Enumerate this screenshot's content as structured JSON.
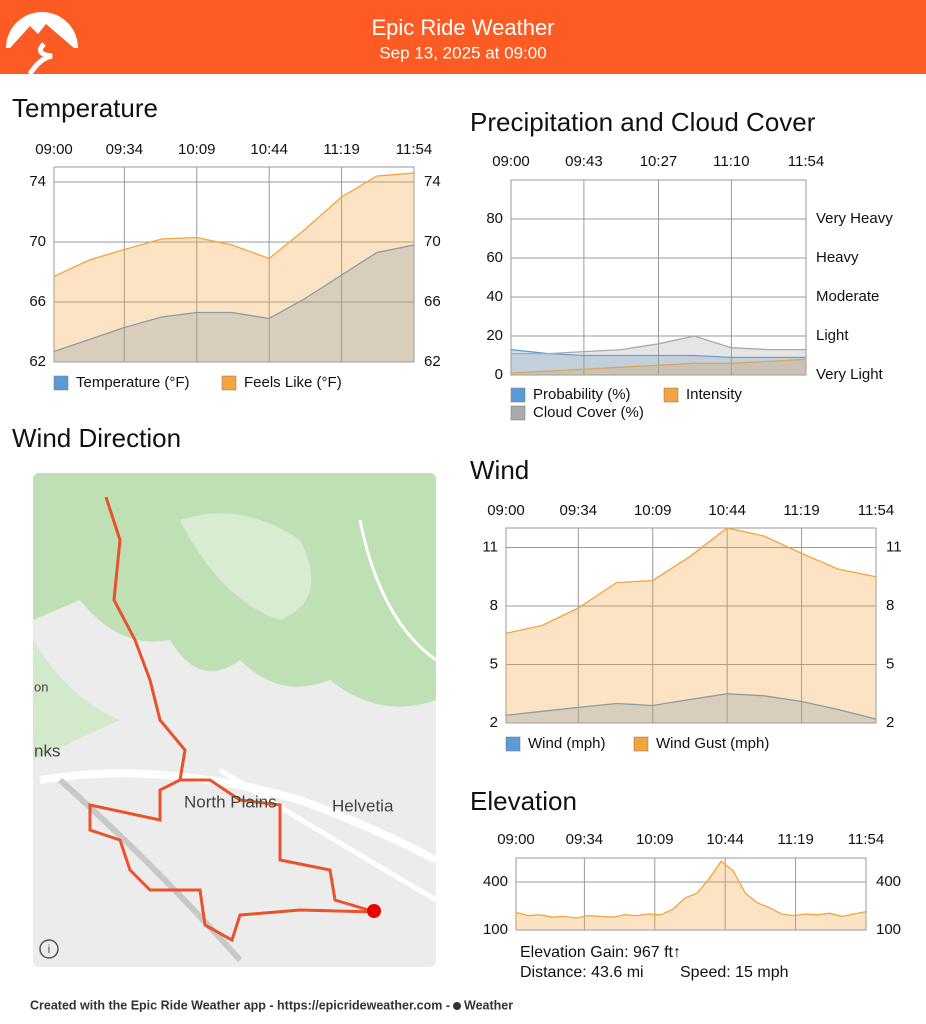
{
  "header": {
    "title": "Epic Ride Weather",
    "subtitle": "Sep 13, 2025 at 09:00"
  },
  "chart_data": [
    {
      "type": "area",
      "title": "Temperature",
      "x": [
        "09:00",
        "09:17",
        "09:34",
        "09:52",
        "10:09",
        "10:26",
        "10:44",
        "11:01",
        "11:19",
        "11:36",
        "11:54"
      ],
      "xlim": [
        "09:00",
        "11:54"
      ],
      "xticks": [
        "09:00",
        "09:34",
        "10:09",
        "10:44",
        "11:19",
        "11:54"
      ],
      "ylim": [
        62,
        75
      ],
      "yticks": [
        62,
        66,
        70,
        74
      ],
      "y2ticks": [
        62,
        66,
        70,
        74
      ],
      "grid": true,
      "series": [
        {
          "name": "Temperature (°F)",
          "color": "#5b9bd5",
          "values": [
            62.7,
            63.5,
            64.3,
            65.0,
            65.3,
            65.3,
            64.9,
            66.2,
            67.8,
            69.3,
            69.8
          ]
        },
        {
          "name": "Feels Like (°F)",
          "color": "#f5a33c",
          "values": [
            67.7,
            68.8,
            69.5,
            70.2,
            70.3,
            69.8,
            68.9,
            70.8,
            73.0,
            74.4,
            74.6
          ]
        }
      ]
    },
    {
      "type": "area",
      "title": "Precipitation and Cloud Cover",
      "x": [
        "09:00",
        "09:22",
        "09:43",
        "10:05",
        "10:27",
        "10:48",
        "11:10",
        "11:32",
        "11:54"
      ],
      "xlim": [
        "09:00",
        "11:54"
      ],
      "xticks": [
        "09:00",
        "09:43",
        "10:27",
        "11:10",
        "11:54"
      ],
      "ylim": [
        0,
        100
      ],
      "yticks": [
        0,
        20,
        40,
        60,
        80
      ],
      "y2ticks": [
        {
          "value": 0,
          "label": "Very Light"
        },
        {
          "value": 20,
          "label": "Light"
        },
        {
          "value": 40,
          "label": "Moderate"
        },
        {
          "value": 60,
          "label": "Heavy"
        },
        {
          "value": 80,
          "label": "Very Heavy"
        }
      ],
      "grid": true,
      "series": [
        {
          "name": "Probability (%)",
          "color": "#5b9bd5",
          "values": [
            13,
            11,
            10,
            10,
            10,
            10,
            9,
            9,
            9
          ]
        },
        {
          "name": "Intensity",
          "color": "#f5a33c",
          "values": [
            1,
            2,
            3,
            4,
            5,
            6,
            6,
            7,
            8
          ]
        },
        {
          "name": "Cloud Cover (%)",
          "color": "#aaaaaa",
          "values": [
            11,
            11,
            12,
            13,
            16,
            20,
            14,
            13,
            13
          ]
        }
      ]
    },
    {
      "type": "area",
      "title": "Wind",
      "x": [
        "09:00",
        "09:17",
        "09:34",
        "09:52",
        "10:09",
        "10:26",
        "10:44",
        "11:01",
        "11:19",
        "11:36",
        "11:54"
      ],
      "xlim": [
        "09:00",
        "11:54"
      ],
      "xticks": [
        "09:00",
        "09:34",
        "10:09",
        "10:44",
        "11:19",
        "11:54"
      ],
      "ylim": [
        2,
        12
      ],
      "yticks": [
        2,
        5,
        8,
        11
      ],
      "y2ticks": [
        2,
        5,
        8,
        11
      ],
      "grid": true,
      "series": [
        {
          "name": "Wind (mph)",
          "color": "#5b9bd5",
          "values": [
            2.4,
            2.6,
            2.8,
            3.0,
            2.9,
            3.2,
            3.5,
            3.4,
            3.1,
            2.7,
            2.2
          ]
        },
        {
          "name": "Wind Gust (mph)",
          "color": "#f5a33c",
          "values": [
            6.6,
            7.0,
            7.9,
            9.2,
            9.3,
            10.5,
            12.0,
            11.6,
            10.7,
            9.9,
            9.5
          ]
        }
      ]
    },
    {
      "type": "area",
      "title": "Elevation",
      "x": [
        "09:00",
        "09:06",
        "09:12",
        "09:18",
        "09:24",
        "09:30",
        "09:36",
        "09:42",
        "09:48",
        "09:54",
        "10:00",
        "10:06",
        "10:12",
        "10:18",
        "10:24",
        "10:30",
        "10:36",
        "10:42",
        "10:48",
        "10:54",
        "11:00",
        "11:06",
        "11:12",
        "11:18",
        "11:24",
        "11:30",
        "11:36",
        "11:42",
        "11:48",
        "11:54"
      ],
      "xlim": [
        "09:00",
        "11:54"
      ],
      "xticks": [
        "09:00",
        "09:34",
        "10:09",
        "10:44",
        "11:19",
        "11:54"
      ],
      "ylim": [
        100,
        550
      ],
      "yticks": [
        100,
        400
      ],
      "y2ticks": [
        100,
        400
      ],
      "grid": true,
      "series": [
        {
          "color": "#f5a33c",
          "values": [
            210,
            190,
            195,
            180,
            185,
            175,
            190,
            185,
            180,
            195,
            190,
            200,
            195,
            230,
            300,
            330,
            420,
            530,
            470,
            330,
            270,
            240,
            200,
            190,
            200,
            195,
            205,
            185,
            200,
            215
          ]
        }
      ],
      "stats": [
        "Elevation Gain: 967 ft↑",
        "Distance: 43.6 mi",
        "Speed: 15 mph"
      ]
    }
  ],
  "map": {
    "title": "Wind Direction",
    "labels": [
      "North Plains",
      "Helvetia",
      "nks",
      "on"
    ]
  },
  "footer": {
    "text": "Created with the Epic Ride Weather app - https://epicrideweather.com - ",
    "brand": "Weather"
  }
}
